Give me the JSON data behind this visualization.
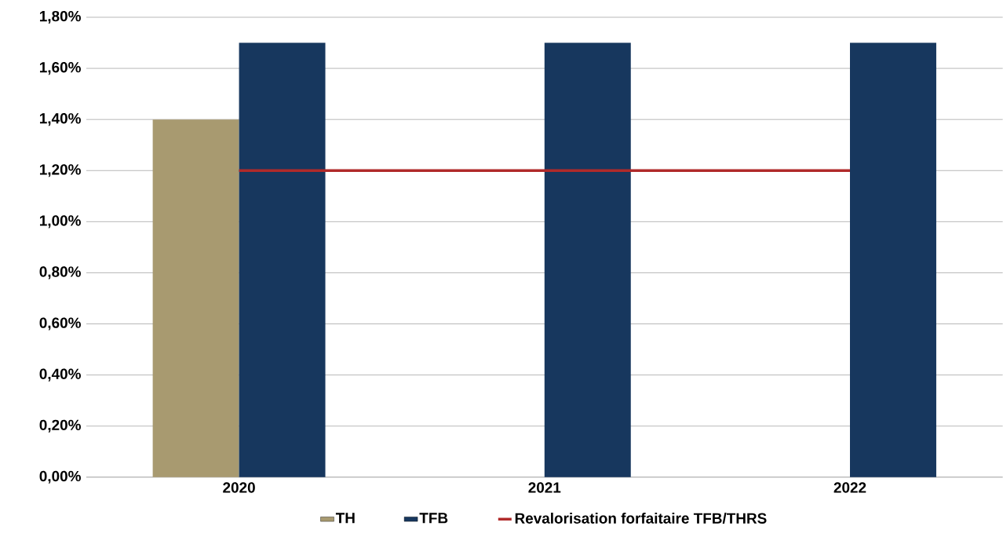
{
  "chart_data": {
    "type": "bar",
    "categories": [
      "2020",
      "2021",
      "2022"
    ],
    "series": [
      {
        "name": "TH",
        "color": "#a89a70",
        "values": [
          1.4,
          null,
          null
        ]
      },
      {
        "name": "TFB",
        "color": "#17375e",
        "values": [
          1.7,
          1.7,
          1.7
        ]
      },
      {
        "name": "Revalorisation forfaitaire TFB/THRS",
        "type": "line",
        "color": "#b02a2a",
        "values": [
          1.2,
          1.2,
          1.2
        ]
      }
    ],
    "ylim": [
      0,
      1.8
    ],
    "yticks": [
      {
        "value": 0,
        "label": "0,00%"
      },
      {
        "value": 0.2,
        "label": "0,20%"
      },
      {
        "value": 0.4,
        "label": "0,40%"
      },
      {
        "value": 0.6,
        "label": "0,60%"
      },
      {
        "value": 0.8,
        "label": "0,80%"
      },
      {
        "value": 1.0,
        "label": "1,00%"
      },
      {
        "value": 1.2,
        "label": "1,20%"
      },
      {
        "value": 1.4,
        "label": "1,40%"
      },
      {
        "value": 1.6,
        "label": "1,60%"
      },
      {
        "value": 1.8,
        "label": "1,80%"
      }
    ],
    "grid": "y",
    "legend": "bottom"
  }
}
